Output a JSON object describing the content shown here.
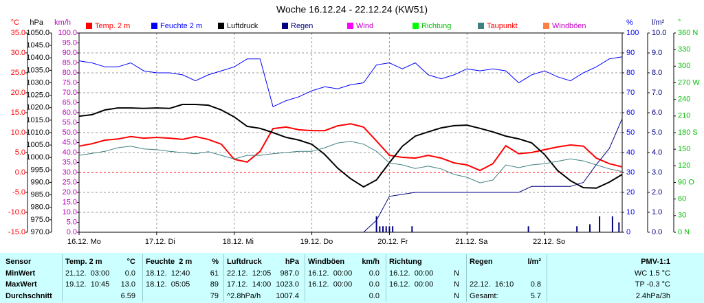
{
  "chart_data": {
    "type": "line",
    "title": "Woche 16.12.24 - 22.12.24 (KW51)",
    "x": [
      0,
      4,
      8,
      12,
      16,
      20,
      24,
      28,
      32,
      36,
      40,
      44,
      48,
      52,
      56,
      60,
      64,
      68,
      72,
      76,
      80,
      84,
      88,
      92,
      96,
      100,
      104,
      108,
      112,
      116,
      120,
      124,
      128,
      132,
      136,
      140,
      144,
      148,
      152,
      156,
      160,
      164,
      168
    ],
    "xlim": [
      0,
      168
    ],
    "xticks": [
      {
        "value": 0,
        "label": "16.12. Mo"
      },
      {
        "value": 24,
        "label": "17.12. Di"
      },
      {
        "value": 48,
        "label": "18.12. Mi"
      },
      {
        "value": 72,
        "label": "19.12. Do"
      },
      {
        "value": 96,
        "label": "20.12. Fr"
      },
      {
        "value": 120,
        "label": "21.12. Sa"
      },
      {
        "value": 144,
        "label": "22.12. So"
      }
    ],
    "grid": true,
    "axes": [
      {
        "label": "°C",
        "side": "left",
        "color": "#ff0000",
        "zero_line": true,
        "lim": [
          -15,
          35
        ],
        "ticks": [
          {
            "value": -15,
            "label": "-15.0"
          },
          {
            "value": -10,
            "label": "-10.0"
          },
          {
            "value": -5,
            "label": "-5.0"
          },
          {
            "value": 0,
            "label": "0.0"
          },
          {
            "value": 5,
            "label": "5.0"
          },
          {
            "value": 10,
            "label": "10.0"
          },
          {
            "value": 15,
            "label": "15.0"
          },
          {
            "value": 20,
            "label": "20.0"
          },
          {
            "value": 25,
            "label": "25.0"
          },
          {
            "value": 30,
            "label": "30.0"
          },
          {
            "value": 35,
            "label": "35.0"
          }
        ]
      },
      {
        "label": "hPa",
        "side": "left",
        "color": "#000000",
        "lim": [
          970,
          1050
        ],
        "ticks": [
          {
            "value": 970,
            "label": "970.0"
          },
          {
            "value": 975,
            "label": "975.0"
          },
          {
            "value": 980,
            "label": "980.0"
          },
          {
            "value": 985,
            "label": "985.0"
          },
          {
            "value": 990,
            "label": "990.0"
          },
          {
            "value": 995,
            "label": "995.0"
          },
          {
            "value": 1000,
            "label": "1000.0"
          },
          {
            "value": 1005,
            "label": "1005.0"
          },
          {
            "value": 1010,
            "label": "1010.0"
          },
          {
            "value": 1015,
            "label": "1015.0"
          },
          {
            "value": 1020,
            "label": "1020.0"
          },
          {
            "value": 1025,
            "label": "1025.0"
          },
          {
            "value": 1030,
            "label": "1030.0"
          },
          {
            "value": 1035,
            "label": "1035.0"
          },
          {
            "value": 1040,
            "label": "1040.0"
          },
          {
            "value": 1045,
            "label": "1045.0"
          },
          {
            "value": 1050,
            "label": "1050.0"
          }
        ]
      },
      {
        "label": "km/h",
        "side": "left",
        "color": "#c000c0",
        "lim": [
          0,
          100
        ],
        "ticks": [
          {
            "value": 0,
            "label": "0.0"
          },
          {
            "value": 5,
            "label": "5.0"
          },
          {
            "value": 10,
            "label": "10.0"
          },
          {
            "value": 15,
            "label": "15.0"
          },
          {
            "value": 20,
            "label": "20.0"
          },
          {
            "value": 25,
            "label": "25.0"
          },
          {
            "value": 30,
            "label": "30.0"
          },
          {
            "value": 35,
            "label": "35.0"
          },
          {
            "value": 40,
            "label": "40.0"
          },
          {
            "value": 45,
            "label": "45.0"
          },
          {
            "value": 50,
            "label": "50.0"
          },
          {
            "value": 55,
            "label": "55.0"
          },
          {
            "value": 60,
            "label": "60.0"
          },
          {
            "value": 65,
            "label": "65.0"
          },
          {
            "value": 70,
            "label": "70.0"
          },
          {
            "value": 75,
            "label": "75.0"
          },
          {
            "value": 80,
            "label": "80.0"
          },
          {
            "value": 85,
            "label": "85.0"
          },
          {
            "value": 90,
            "label": "90.0"
          },
          {
            "value": 95,
            "label": "95.0"
          },
          {
            "value": 100,
            "label": "100.0"
          }
        ]
      },
      {
        "label": "%",
        "side": "right",
        "color": "#0000ff",
        "lim": [
          0,
          100
        ],
        "grid": true,
        "ticks": [
          0,
          10,
          20,
          30,
          40,
          50,
          60,
          70,
          80,
          90,
          100
        ]
      },
      {
        "label": "l/m²",
        "side": "right",
        "color": "#000080",
        "lim": [
          0,
          10
        ],
        "ticks": [
          {
            "value": 0,
            "label": "0.0"
          },
          {
            "value": 1,
            "label": "1.0"
          },
          {
            "value": 2,
            "label": "2.0"
          },
          {
            "value": 3,
            "label": "3.0"
          },
          {
            "value": 4,
            "label": "4.0"
          },
          {
            "value": 5,
            "label": "5.0"
          },
          {
            "value": 6,
            "label": "6.0"
          },
          {
            "value": 7,
            "label": "7.0"
          },
          {
            "value": 8,
            "label": "8.0"
          },
          {
            "value": 9,
            "label": "9.0"
          },
          {
            "value": 10,
            "label": "10.0"
          }
        ]
      },
      {
        "label": "°",
        "side": "right",
        "color": "#00c000",
        "lim": [
          0,
          360
        ],
        "ticks": [
          {
            "value": 0,
            "label": "0 N"
          },
          30,
          60,
          {
            "value": 90,
            "label": "90 O"
          },
          120,
          150,
          {
            "value": 180,
            "label": "180 S"
          },
          210,
          240,
          {
            "value": 270,
            "label": "270 W"
          },
          300,
          330,
          {
            "value": 360,
            "label": "360 N"
          }
        ]
      }
    ],
    "series": [
      {
        "name": "Temp. 2 m",
        "color": "#ff0000",
        "axis": 0,
        "width": 2,
        "values": [
          6.6,
          7.2,
          8.1,
          8.4,
          9.0,
          8.6,
          8.8,
          8.6,
          8.3,
          9.0,
          8.3,
          7.1,
          3.3,
          2.6,
          5.3,
          11.0,
          11.4,
          10.7,
          10.5,
          10.5,
          11.7,
          12.2,
          11.4,
          7.9,
          4.3,
          3.8,
          3.6,
          4.3,
          3.6,
          2.4,
          1.9,
          0.5,
          2.2,
          6.7,
          4.7,
          5.0,
          5.7,
          6.4,
          6.9,
          6.6,
          3.6,
          2.2,
          1.4
        ]
      },
      {
        "name": "Feuchte  2 m",
        "color": "#0000ff",
        "axis": 3,
        "width": 1,
        "values": [
          86,
          85,
          83,
          83,
          85,
          81,
          80,
          80,
          79,
          76,
          79,
          81,
          83,
          87,
          87,
          63,
          66,
          68,
          71,
          73,
          72,
          74,
          75,
          84,
          85,
          82,
          85,
          79,
          77,
          79,
          82,
          81,
          82,
          81,
          75,
          79,
          81,
          78,
          76,
          80,
          83,
          87,
          88
        ]
      },
      {
        "name": "Luftdruck",
        "color": "#000000",
        "axis": 1,
        "width": 2,
        "values": [
          1016.6,
          1017.2,
          1019.1,
          1019.9,
          1019.9,
          1019.7,
          1019.9,
          1019.7,
          1021.3,
          1021.3,
          1021.0,
          1019.1,
          1016.3,
          1012.5,
          1011.7,
          1010.0,
          1008.1,
          1007.0,
          1005.3,
          1001.2,
          995.7,
          991.5,
          988.2,
          991.0,
          997.9,
          1004.5,
          1008.6,
          1010.3,
          1011.9,
          1012.8,
          1013.0,
          1011.7,
          1010.3,
          1008.6,
          1007.5,
          1005.9,
          1001.2,
          994.8,
          990.7,
          987.9,
          987.7,
          990.1,
          993.2
        ]
      },
      {
        "name": "Regen",
        "color": "#000080",
        "axis": 4,
        "width": 1,
        "values": [
          null,
          null,
          null,
          null,
          null,
          null,
          null,
          null,
          null,
          null,
          null,
          null,
          null,
          null,
          null,
          null,
          null,
          null,
          null,
          null,
          null,
          null,
          0.0,
          0.6,
          1.8,
          1.9,
          2.0,
          2.0,
          2.0,
          2.0,
          2.0,
          2.0,
          2.0,
          2.0,
          2.0,
          2.3,
          2.3,
          2.3,
          2.3,
          2.5,
          3.4,
          4.2,
          5.7
        ],
        "bars": {
          "x": [
            92,
            93,
            94,
            95,
            96,
            97,
            103,
            139,
            154,
            158,
            161,
            165,
            167
          ],
          "values": [
            0.8,
            0.3,
            0.3,
            0.3,
            0.3,
            0.3,
            0.3,
            0.3,
            0.3,
            0.4,
            0.8,
            0.8,
            0.5
          ]
        }
      },
      {
        "name": "Wind",
        "color": "#ff00ff",
        "axis": 2
      },
      {
        "name": "Richtung",
        "color": "#00ff00",
        "axis": 5
      },
      {
        "name": "Taupunkt",
        "color": "#408080",
        "axis": 0,
        "width": 1,
        "values": [
          4.3,
          4.8,
          5.3,
          6.2,
          6.6,
          5.9,
          5.7,
          5.3,
          5.0,
          4.7,
          5.2,
          4.3,
          3.4,
          4.3,
          4.3,
          4.7,
          5.0,
          5.3,
          5.3,
          6.2,
          7.4,
          7.8,
          7.1,
          5.3,
          2.4,
          1.9,
          1.0,
          1.6,
          0.9,
          -0.5,
          -1.2,
          -2.6,
          -1.9,
          1.9,
          1.2,
          1.9,
          2.2,
          2.8,
          3.4,
          2.9,
          1.9,
          0.9,
          0.2
        ]
      },
      {
        "name": "Windböen",
        "color": "#ff8040",
        "axis": 2
      }
    ]
  },
  "table": {
    "header": [
      [
        "Sensor"
      ],
      [
        "Temp. 2 m",
        "°C"
      ],
      [
        "Feuchte  2 m",
        "%"
      ],
      [
        "Luftdruck",
        "hPa"
      ],
      [
        "Windböen",
        "km/h"
      ],
      [
        "Richtung"
      ],
      [
        "Regen",
        "l/m²"
      ],
      [
        null,
        "PMV-1:1"
      ]
    ],
    "rows": [
      [
        [
          "MinWert"
        ],
        [
          "21.12.  03:00",
          "0.0"
        ],
        [
          "18.12.  12:40",
          "61"
        ],
        [
          "22.12.  12:05",
          "987.0"
        ],
        [
          "16.12.  00:00",
          "0.0"
        ],
        [
          "16.12.  00:00",
          "N"
        ],
        [],
        [
          null,
          "WC 1.5 °C"
        ]
      ],
      [
        [
          "MaxWert"
        ],
        [
          "19.12.  10:45",
          "13.0"
        ],
        [
          "18.12.  05:05",
          "89"
        ],
        [
          "17.12.  14:00",
          "1023.0"
        ],
        [
          "16.12.  00:00",
          "0.0"
        ],
        [
          "16.12.  00:00",
          "N"
        ],
        [
          "22.12.  16:10",
          "0.8"
        ],
        [
          null,
          "TP -0.3 °C"
        ]
      ],
      [
        [
          "Durchschnitt"
        ],
        [
          null,
          "6.59"
        ],
        [
          null,
          "79"
        ],
        [
          "^2.8hPa/h",
          "1007.4"
        ],
        [
          null,
          "0.0"
        ],
        [
          null,
          "N"
        ],
        [
          "Gesamt:",
          "5.7"
        ],
        [
          null,
          "2.4hPa/3h"
        ]
      ]
    ]
  }
}
